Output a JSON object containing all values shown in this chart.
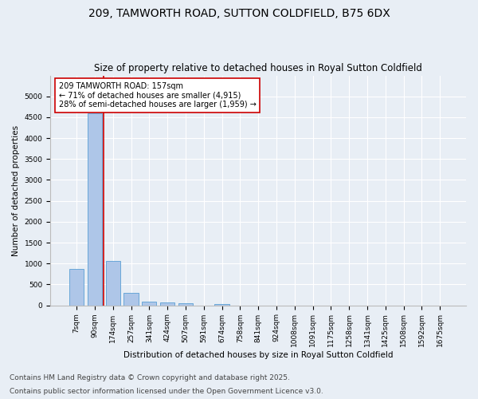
{
  "title": "209, TAMWORTH ROAD, SUTTON COLDFIELD, B75 6DX",
  "subtitle": "Size of property relative to detached houses in Royal Sutton Coldfield",
  "xlabel": "Distribution of detached houses by size in Royal Sutton Coldfield",
  "ylabel": "Number of detached properties",
  "categories": [
    "7sqm",
    "90sqm",
    "174sqm",
    "257sqm",
    "341sqm",
    "424sqm",
    "507sqm",
    "591sqm",
    "674sqm",
    "758sqm",
    "841sqm",
    "924sqm",
    "1008sqm",
    "1091sqm",
    "1175sqm",
    "1258sqm",
    "1341sqm",
    "1425sqm",
    "1508sqm",
    "1592sqm",
    "1675sqm"
  ],
  "values": [
    870,
    4600,
    1070,
    290,
    80,
    60,
    50,
    0,
    40,
    0,
    0,
    0,
    0,
    0,
    0,
    0,
    0,
    0,
    0,
    0,
    0
  ],
  "bar_color": "#aec6e8",
  "bar_edge_color": "#5a9fd4",
  "vline_x": 1.5,
  "vline_color": "#cc0000",
  "annotation_text": "209 TAMWORTH ROAD: 157sqm\n← 71% of detached houses are smaller (4,915)\n28% of semi-detached houses are larger (1,959) →",
  "annotation_box_color": "white",
  "annotation_box_edge": "#cc0000",
  "ylim": [
    0,
    5500
  ],
  "yticks": [
    0,
    500,
    1000,
    1500,
    2000,
    2500,
    3000,
    3500,
    4000,
    4500,
    5000
  ],
  "footnote1": "Contains HM Land Registry data © Crown copyright and database right 2025.",
  "footnote2": "Contains public sector information licensed under the Open Government Licence v3.0.",
  "bg_color": "#e8eef5",
  "plot_bg_color": "#e8eef5",
  "title_fontsize": 10,
  "subtitle_fontsize": 8.5,
  "footnote_fontsize": 6.5,
  "annotation_fontsize": 7,
  "ylabel_fontsize": 7.5,
  "xlabel_fontsize": 7.5,
  "tick_fontsize": 6.5
}
